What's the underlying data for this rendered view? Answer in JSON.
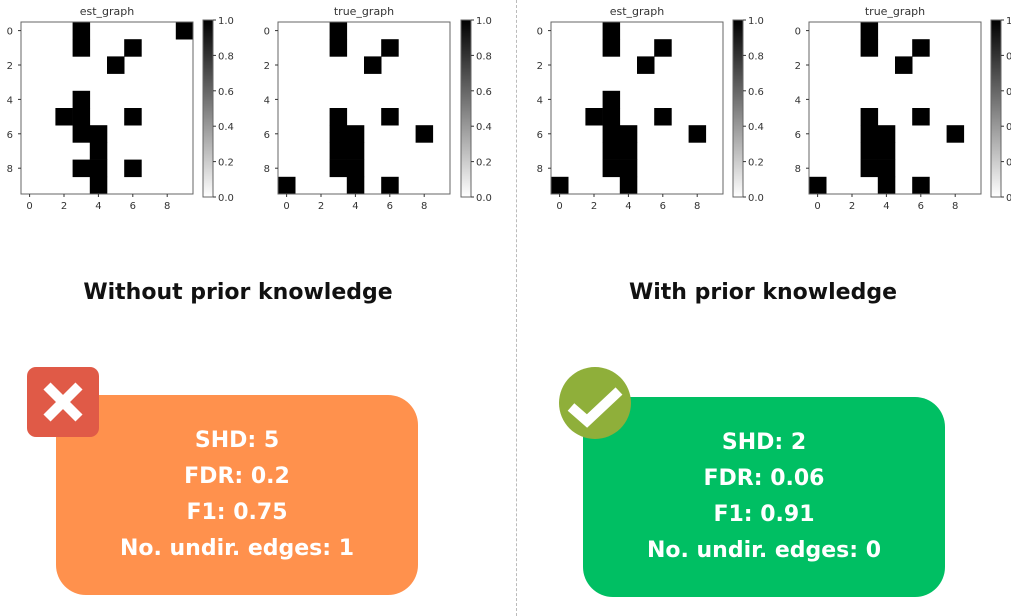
{
  "left_panel": {
    "heading": "Without prior knowledge",
    "status_icon": "cross-icon",
    "box_color": "#FF914D",
    "metrics": [
      "SHD: 5",
      "FDR: 0.2",
      "F1: 0.75",
      "No. undir. edges: 1"
    ]
  },
  "right_panel": {
    "heading": "With prior knowledge",
    "status_icon": "check-icon",
    "box_color": "#00BF63",
    "metrics": [
      "SHD: 2",
      "FDR: 0.06",
      "F1: 0.91",
      "No. undir. edges: 0"
    ]
  },
  "chart_data": [
    {
      "type": "heatmap",
      "title": "est_graph",
      "xticks": [
        0,
        2,
        4,
        6,
        8
      ],
      "yticks": [
        0,
        2,
        4,
        6,
        8
      ],
      "colorbar_ticks": [
        "0.0",
        "0.2",
        "0.4",
        "0.6",
        "0.8",
        "1.0"
      ],
      "colormap": "Greys",
      "vlim": [
        0,
        1
      ],
      "matrix": [
        [
          0,
          0,
          0,
          1,
          0,
          0,
          0,
          0,
          0,
          1
        ],
        [
          0,
          0,
          0,
          1,
          0,
          0,
          1,
          0,
          0,
          0
        ],
        [
          0,
          0,
          0,
          0,
          0,
          1,
          0,
          0,
          0,
          0
        ],
        [
          0,
          0,
          0,
          0,
          0,
          0,
          0,
          0,
          0,
          0
        ],
        [
          0,
          0,
          0,
          1,
          0,
          0,
          0,
          0,
          0,
          0
        ],
        [
          0,
          0,
          1,
          1,
          0,
          0,
          1,
          0,
          0,
          0
        ],
        [
          0,
          0,
          0,
          1,
          1,
          0,
          0,
          0,
          0,
          0
        ],
        [
          0,
          0,
          0,
          0,
          1,
          0,
          0,
          0,
          0,
          0
        ],
        [
          0,
          0,
          0,
          1,
          1,
          0,
          1,
          0,
          0,
          0
        ],
        [
          0,
          0,
          0,
          0,
          1,
          0,
          0,
          0,
          0,
          0
        ]
      ]
    },
    {
      "type": "heatmap",
      "title": "true_graph",
      "xticks": [
        0,
        2,
        4,
        6,
        8
      ],
      "yticks": [
        0,
        2,
        4,
        6,
        8
      ],
      "colorbar_ticks": [
        "0.0",
        "0.2",
        "0.4",
        "0.6",
        "0.8",
        "1.0"
      ],
      "colormap": "Greys",
      "vlim": [
        0,
        1
      ],
      "matrix": [
        [
          0,
          0,
          0,
          1,
          0,
          0,
          0,
          0,
          0,
          0
        ],
        [
          0,
          0,
          0,
          1,
          0,
          0,
          1,
          0,
          0,
          0
        ],
        [
          0,
          0,
          0,
          0,
          0,
          1,
          0,
          0,
          0,
          0
        ],
        [
          0,
          0,
          0,
          0,
          0,
          0,
          0,
          0,
          0,
          0
        ],
        [
          0,
          0,
          0,
          0,
          0,
          0,
          0,
          0,
          0,
          0
        ],
        [
          0,
          0,
          0,
          1,
          0,
          0,
          1,
          0,
          0,
          0
        ],
        [
          0,
          0,
          0,
          1,
          1,
          0,
          0,
          0,
          1,
          0
        ],
        [
          0,
          0,
          0,
          1,
          1,
          0,
          0,
          0,
          0,
          0
        ],
        [
          0,
          0,
          0,
          1,
          1,
          0,
          0,
          0,
          0,
          0
        ],
        [
          1,
          0,
          0,
          0,
          1,
          0,
          1,
          0,
          0,
          0
        ]
      ]
    },
    {
      "type": "heatmap",
      "title": "est_graph",
      "xticks": [
        0,
        2,
        4,
        6,
        8
      ],
      "yticks": [
        0,
        2,
        4,
        6,
        8
      ],
      "colorbar_ticks": [
        "0.0",
        "0.2",
        "0.4",
        "0.6",
        "0.8",
        "1.0"
      ],
      "colormap": "Greys",
      "vlim": [
        0,
        1
      ],
      "matrix": [
        [
          0,
          0,
          0,
          1,
          0,
          0,
          0,
          0,
          0,
          0
        ],
        [
          0,
          0,
          0,
          1,
          0,
          0,
          1,
          0,
          0,
          0
        ],
        [
          0,
          0,
          0,
          0,
          0,
          1,
          0,
          0,
          0,
          0
        ],
        [
          0,
          0,
          0,
          0,
          0,
          0,
          0,
          0,
          0,
          0
        ],
        [
          0,
          0,
          0,
          1,
          0,
          0,
          0,
          0,
          0,
          0
        ],
        [
          0,
          0,
          1,
          1,
          0,
          0,
          1,
          0,
          0,
          0
        ],
        [
          0,
          0,
          0,
          1,
          1,
          0,
          0,
          0,
          1,
          0
        ],
        [
          0,
          0,
          0,
          1,
          1,
          0,
          0,
          0,
          0,
          0
        ],
        [
          0,
          0,
          0,
          1,
          1,
          0,
          0,
          0,
          0,
          0
        ],
        [
          1,
          0,
          0,
          0,
          1,
          0,
          0,
          0,
          0,
          0
        ]
      ]
    },
    {
      "type": "heatmap",
      "title": "true_graph",
      "xticks": [
        0,
        2,
        4,
        6,
        8
      ],
      "yticks": [
        0,
        2,
        4,
        6,
        8
      ],
      "colorbar_ticks": [
        "0.0",
        "0.2",
        "0.4",
        "0.6",
        "0.8",
        "1.0"
      ],
      "colormap": "Greys",
      "vlim": [
        0,
        1
      ],
      "matrix": [
        [
          0,
          0,
          0,
          1,
          0,
          0,
          0,
          0,
          0,
          0
        ],
        [
          0,
          0,
          0,
          1,
          0,
          0,
          1,
          0,
          0,
          0
        ],
        [
          0,
          0,
          0,
          0,
          0,
          1,
          0,
          0,
          0,
          0
        ],
        [
          0,
          0,
          0,
          0,
          0,
          0,
          0,
          0,
          0,
          0
        ],
        [
          0,
          0,
          0,
          0,
          0,
          0,
          0,
          0,
          0,
          0
        ],
        [
          0,
          0,
          0,
          1,
          0,
          0,
          1,
          0,
          0,
          0
        ],
        [
          0,
          0,
          0,
          1,
          1,
          0,
          0,
          0,
          1,
          0
        ],
        [
          0,
          0,
          0,
          1,
          1,
          0,
          0,
          0,
          0,
          0
        ],
        [
          0,
          0,
          0,
          1,
          1,
          0,
          0,
          0,
          0,
          0
        ],
        [
          1,
          0,
          0,
          0,
          1,
          0,
          1,
          0,
          0,
          0
        ]
      ]
    }
  ]
}
